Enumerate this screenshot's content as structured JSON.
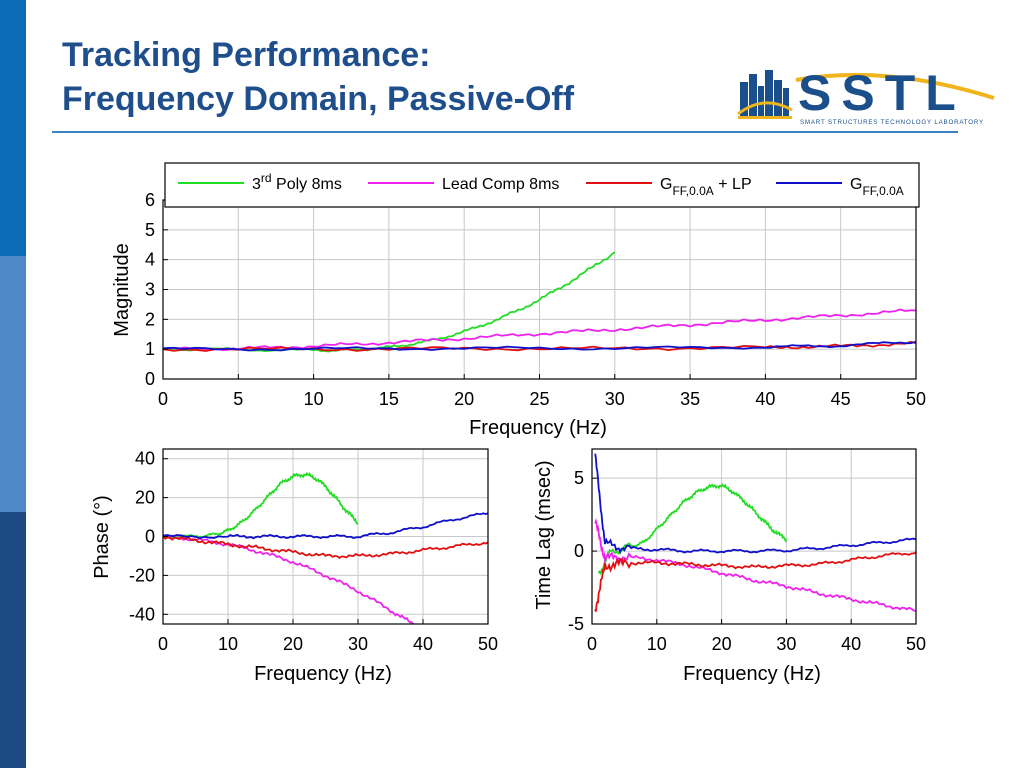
{
  "slide": {
    "title_line1": "Tracking Performance:",
    "title_line2": "Frequency Domain, Passive-Off",
    "sidebar_colors": [
      "#0c6bb5",
      "#4f88c6",
      "#1d4a82"
    ],
    "accent_color": "#1f4e8c"
  },
  "logo": {
    "text": "SSTL",
    "tagline": "SMART STRUCTURES TECHNOLOGY LABORATORY",
    "text_color": "#1b4f8c",
    "swoosh_color": "#f0b41c"
  },
  "legend": {
    "items": [
      {
        "main": "3",
        "sup": "rd",
        "rest": " Poly 8ms",
        "color": "#22dd22"
      },
      {
        "main": "Lead Comp 8ms",
        "color": "#ee22ee"
      },
      {
        "main": "G",
        "sub": "FF,0.0A",
        "rest": " + LP",
        "color": "#e01010"
      },
      {
        "main": "G",
        "sub": "FF,0.0A",
        "color": "#1010cc"
      }
    ]
  },
  "chart_data": [
    {
      "type": "line",
      "xlabel": "Frequency (Hz)",
      "ylabel": "Magnitude",
      "xlim": [
        0,
        50
      ],
      "ylim": [
        0,
        6
      ],
      "xticks": [
        0,
        5,
        10,
        15,
        20,
        25,
        30,
        35,
        40,
        45,
        50
      ],
      "yticks": [
        0,
        1,
        2,
        3,
        4,
        5,
        6
      ],
      "grid": true,
      "series": [
        {
          "name": "3rd Poly 8ms",
          "color": "#22dd22",
          "x": [
            0,
            5,
            10,
            12.5,
            15,
            17.5,
            20,
            22.5,
            25,
            27.5,
            30
          ],
          "y": [
            1.0,
            0.99,
            0.96,
            0.97,
            1.06,
            1.25,
            1.58,
            2.05,
            2.65,
            3.4,
            4.25
          ]
        },
        {
          "name": "Lead Comp 8ms",
          "color": "#ee22ee",
          "x": [
            0,
            5,
            10,
            15,
            20,
            25,
            30,
            35,
            40,
            45,
            50
          ],
          "y": [
            1.0,
            1.02,
            1.1,
            1.22,
            1.36,
            1.52,
            1.66,
            1.82,
            1.98,
            2.13,
            2.3
          ]
        },
        {
          "name": "GFF,0.0A + LP",
          "color": "#e01010",
          "x": [
            0,
            10,
            20,
            30,
            40,
            45,
            50
          ],
          "y": [
            1.0,
            1.0,
            1.02,
            1.02,
            1.06,
            1.1,
            1.2
          ]
        },
        {
          "name": "GFF,0.0A",
          "color": "#1010cc",
          "x": [
            0,
            10,
            20,
            30,
            40,
            45,
            50
          ],
          "y": [
            1.0,
            1.01,
            1.03,
            1.03,
            1.07,
            1.12,
            1.25
          ]
        }
      ]
    },
    {
      "type": "line",
      "xlabel": "Frequency (Hz)",
      "ylabel": "Phase (°)",
      "xlim": [
        0,
        50
      ],
      "ylim": [
        -45,
        45
      ],
      "xticks": [
        0,
        10,
        20,
        30,
        40,
        50
      ],
      "yticks": [
        -40,
        -20,
        0,
        20,
        40
      ],
      "grid": true,
      "series": [
        {
          "name": "3rd Poly 8ms",
          "color": "#22dd22",
          "x": [
            0,
            5,
            8,
            10,
            12,
            14,
            16,
            18,
            20,
            22,
            24,
            26,
            28,
            30
          ],
          "y": [
            0,
            0,
            1,
            3,
            7,
            13,
            20,
            27,
            31,
            32,
            29,
            22,
            14,
            7
          ]
        },
        {
          "name": "Lead Comp 8ms",
          "color": "#ee22ee",
          "x": [
            0,
            5,
            10,
            15,
            20,
            25,
            30,
            35,
            38.5
          ],
          "y": [
            0,
            -1.5,
            -4,
            -8,
            -13,
            -20,
            -28,
            -38,
            -45
          ]
        },
        {
          "name": "GFF,0.0A + LP",
          "color": "#e01010",
          "x": [
            0,
            5,
            10,
            15,
            20,
            25,
            30,
            35,
            40,
            45,
            50
          ],
          "y": [
            0,
            -2,
            -4,
            -6,
            -8,
            -10,
            -10,
            -9,
            -7,
            -5,
            -3
          ]
        },
        {
          "name": "GFF,0.0A",
          "color": "#1010cc",
          "x": [
            0,
            10,
            15,
            20,
            25,
            30,
            35,
            40,
            45,
            50
          ],
          "y": [
            0,
            0,
            0,
            0,
            0,
            0,
            2,
            5,
            9,
            12
          ]
        }
      ]
    },
    {
      "type": "line",
      "xlabel": "Frequency (Hz)",
      "ylabel": "Time Lag (msec)",
      "xlim": [
        0,
        50
      ],
      "ylim": [
        -5,
        7
      ],
      "xticks": [
        0,
        10,
        20,
        30,
        40,
        50
      ],
      "yticks": [
        -5,
        0,
        5
      ],
      "grid": true,
      "series": [
        {
          "name": "3rd Poly 8ms",
          "color": "#22dd22",
          "x": [
            1,
            3,
            6,
            8,
            10,
            12,
            14,
            16,
            18,
            20,
            22,
            24,
            26,
            28,
            30
          ],
          "y": [
            -1.5,
            0,
            0.3,
            0.6,
            1.5,
            2.4,
            3.3,
            4.0,
            4.4,
            4.5,
            4.0,
            3.2,
            2.3,
            1.4,
            0.8
          ]
        },
        {
          "name": "Lead Comp 8ms",
          "color": "#ee22ee",
          "x": [
            0.5,
            2,
            5,
            10,
            15,
            20,
            25,
            30,
            35,
            40,
            45,
            50
          ],
          "y": [
            2,
            -0.5,
            -0.4,
            -0.6,
            -1.0,
            -1.5,
            -2.0,
            -2.4,
            -2.9,
            -3.3,
            -3.7,
            -4.1
          ]
        },
        {
          "name": "GFF,0.0A + LP",
          "color": "#e01010",
          "x": [
            0.5,
            2,
            5,
            10,
            15,
            20,
            25,
            30,
            35,
            40,
            45,
            50
          ],
          "y": [
            -4,
            -1,
            -0.8,
            -0.8,
            -0.9,
            -1.0,
            -1.1,
            -1.0,
            -0.9,
            -0.6,
            -0.3,
            -0.1
          ]
        },
        {
          "name": "GFF,0.0A",
          "color": "#1010cc",
          "x": [
            0.5,
            2,
            5,
            10,
            15,
            20,
            25,
            30,
            35,
            40,
            45,
            50
          ],
          "y": [
            6.5,
            0.5,
            0.2,
            0.1,
            0.0,
            0.0,
            0.0,
            0.05,
            0.2,
            0.4,
            0.6,
            0.8
          ]
        }
      ]
    }
  ]
}
